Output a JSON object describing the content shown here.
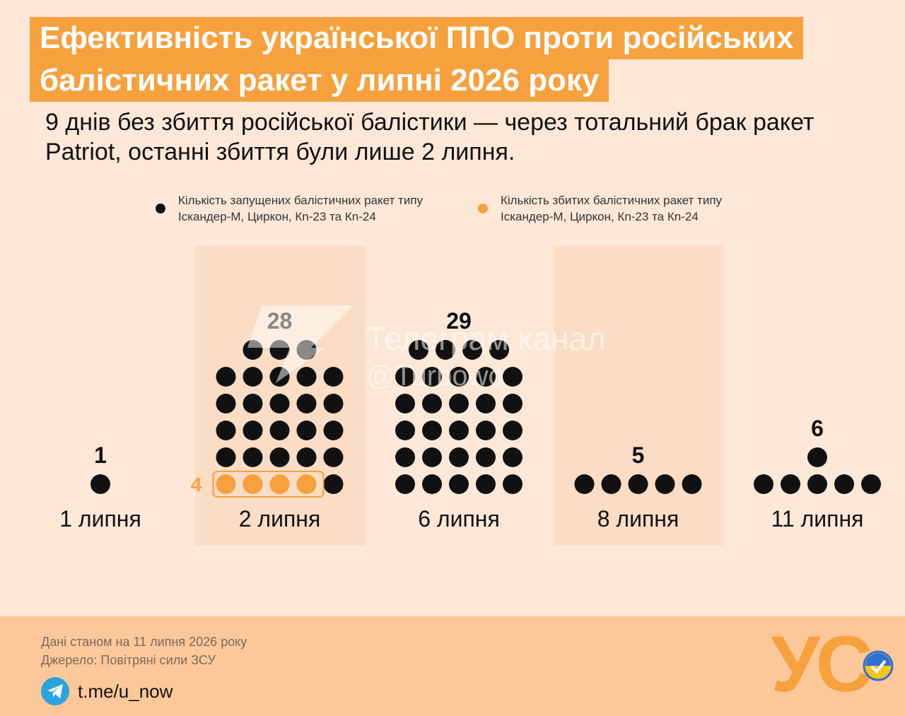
{
  "title": {
    "line1": "Ефективність української ППО проти російських",
    "line2": "балістичних ракет у липні 2026 року"
  },
  "subtitle": "9 днів без збиття російської балістики — через тотальний брак ракет Patriot, останні збиття були лише 2 липня.",
  "legend": {
    "launched": "Кількість запущених балістичних ракет типу Іскандер-М, Циркон, Кn-23 та Кn-24",
    "downed": "Кількість збитих балістичних ракет типу Іскандер-М, Циркон, Кn-23 та Кn-24"
  },
  "colors": {
    "background": "#fde8d8",
    "accent": "#f7a13e",
    "launched_dot": "#111111",
    "downed_dot": "#f7a13e",
    "highlight_column": "#fbdcc4",
    "footer": "#fdc899"
  },
  "chart_data": {
    "type": "dot-plot",
    "categories": [
      "1 липня",
      "2 липня",
      "6 липня",
      "8 липня",
      "11 липня"
    ],
    "series": [
      {
        "name": "Кількість запущених балістичних ракет типу Іскандер-М, Циркон, Кn-23 та Кn-24",
        "values": [
          1,
          28,
          29,
          5,
          6
        ]
      },
      {
        "name": "Кількість збитих балістичних ракет типу Іскандер-М, Циркон, Кn-23 та Кn-24",
        "values": [
          0,
          4,
          0,
          0,
          0
        ]
      }
    ],
    "total_labels": [
      "1",
      "28",
      "29",
      "5",
      "6"
    ],
    "downed_labels": [
      "",
      "4",
      "",
      "",
      ""
    ],
    "highlighted_categories": [
      "2 липня",
      "8 липня"
    ]
  },
  "watermark": {
    "line1": "Телеграм канал",
    "line2": "@Turbowo"
  },
  "footer": {
    "date_note": "Дані станом на 11 липня 2026 року",
    "source_note": "Джерело: Повітряні сили ЗСУ",
    "telegram_link": "t.me/u_now",
    "logo_text": "УС",
    "telegram_icon": "telegram-icon"
  }
}
